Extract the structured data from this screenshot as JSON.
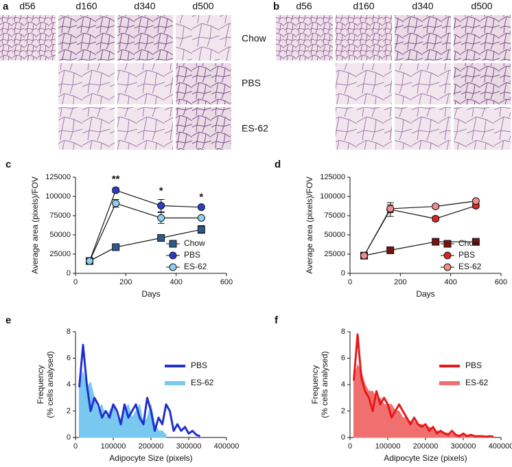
{
  "figure": {
    "panel_a": {
      "letter": "a",
      "columns": [
        "d56",
        "d160",
        "d340",
        "d500"
      ],
      "rows": [
        "Chow",
        "PBS",
        "ES-62"
      ]
    },
    "panel_b": {
      "letter": "b",
      "columns": [
        "d56",
        "d160",
        "d340",
        "d500"
      ]
    }
  },
  "chart_data": [
    {
      "type": "line",
      "panel": "c",
      "xlabel": "Days",
      "ylabel": "Average area (pixels)/FOV",
      "x": [
        56,
        160,
        340,
        500
      ],
      "series": [
        {
          "name": "Chow",
          "color": "#2b5c8c",
          "marker": "square",
          "values": [
            16000,
            34000,
            46000,
            57000
          ],
          "errors": [
            0,
            2000,
            2500,
            5000
          ]
        },
        {
          "name": "PBS",
          "color": "#2a3fc8",
          "marker": "circle",
          "values": [
            16000,
            108000,
            88000,
            86000
          ],
          "errors": [
            0,
            3000,
            8000,
            2000
          ]
        },
        {
          "name": "ES-62",
          "color": "#8fd0f2",
          "marker": "circle",
          "values": [
            16000,
            91000,
            72000,
            72000
          ],
          "errors": [
            0,
            5000,
            7000,
            2000
          ]
        }
      ],
      "annotations": [
        {
          "x": 160,
          "text": "**"
        },
        {
          "x": 340,
          "text": "*"
        },
        {
          "x": 500,
          "text": "*"
        }
      ],
      "xlim": [
        0,
        600
      ],
      "xticks": [
        0,
        200,
        400,
        600
      ],
      "ylim": [
        0,
        125000
      ],
      "yticks": [
        0,
        25000,
        50000,
        75000,
        100000,
        125000
      ],
      "legend": "lower right"
    },
    {
      "type": "line",
      "panel": "d",
      "xlabel": "Days",
      "ylabel": "Average area (pixels)/FOV",
      "x": [
        56,
        160,
        340,
        500
      ],
      "series": [
        {
          "name": "Chow",
          "color": "#7a1212",
          "marker": "square",
          "values": [
            23000,
            30000,
            41000,
            41000
          ],
          "errors": [
            0,
            2000,
            3000,
            2000
          ]
        },
        {
          "name": "PBS",
          "color": "#e02424",
          "marker": "circle",
          "values": [
            23000,
            83000,
            71000,
            88000
          ],
          "errors": [
            0,
            9000,
            3000,
            3000
          ]
        },
        {
          "name": "ES-62",
          "color": "#f28a8a",
          "marker": "circle",
          "values": [
            23000,
            84000,
            87000,
            94000
          ],
          "errors": [
            0,
            5000,
            2500,
            2000
          ]
        }
      ],
      "xlim": [
        0,
        600
      ],
      "xticks": [
        0,
        200,
        400,
        600
      ],
      "ylim": [
        0,
        125000
      ],
      "yticks": [
        0,
        25000,
        50000,
        75000,
        100000,
        125000
      ],
      "legend": "lower right"
    },
    {
      "type": "line",
      "panel": "e",
      "xlabel": "Adipocyte Size (pixels)",
      "ylabel": [
        "Frequency",
        "(% cells analysed)"
      ],
      "x": [
        10000,
        20000,
        30000,
        40000,
        50000,
        60000,
        70000,
        80000,
        90000,
        100000,
        110000,
        120000,
        130000,
        140000,
        150000,
        160000,
        170000,
        180000,
        190000,
        200000,
        210000,
        220000,
        230000,
        240000,
        250000,
        260000,
        270000,
        280000,
        290000,
        300000,
        310000,
        320000,
        330000
      ],
      "series": [
        {
          "name": "PBS",
          "color": "#1f2fd0",
          "style": "line",
          "values": [
            3.8,
            7.0,
            4.0,
            2.0,
            3.0,
            2.5,
            1.5,
            2.0,
            1.5,
            2.5,
            2.0,
            1.0,
            2.5,
            1.5,
            2.0,
            2.5,
            1.5,
            1.0,
            3.0,
            2.0,
            0.5,
            1.5,
            1.0,
            2.5,
            2.0,
            0.5,
            1.0,
            0.5,
            0.8,
            0.3,
            0.5,
            0.2,
            0.1
          ]
        },
        {
          "name": "ES-62",
          "color": "#78c8f0",
          "style": "area",
          "values": [
            4.0,
            5.0,
            3.8,
            4.2,
            3.0,
            2.0,
            2.5,
            1.5,
            2.0,
            2.5,
            1.5,
            1.0,
            2.0,
            2.5,
            1.5,
            2.0,
            2.5,
            1.0,
            1.5,
            2.5,
            1.0,
            0.5,
            0.5,
            0.2,
            null,
            null,
            null,
            null,
            null,
            null,
            null,
            null,
            null
          ]
        }
      ],
      "xlim": [
        0,
        400000
      ],
      "xticks": [
        0,
        100000,
        200000,
        300000,
        400000
      ],
      "ylim": [
        0,
        8
      ],
      "yticks": [
        0,
        2,
        4,
        6,
        8
      ],
      "legend": "upper right"
    },
    {
      "type": "line",
      "panel": "f",
      "xlabel": "Adipocyte Size (pixels)",
      "ylabel": [
        "Frequency",
        "(% cells analysed)"
      ],
      "x": [
        10000,
        20000,
        30000,
        40000,
        50000,
        60000,
        70000,
        80000,
        90000,
        100000,
        110000,
        120000,
        130000,
        140000,
        150000,
        160000,
        170000,
        180000,
        190000,
        200000,
        210000,
        220000,
        230000,
        240000,
        250000,
        260000,
        270000,
        280000,
        290000,
        300000,
        310000,
        320000,
        330000,
        340000,
        350000,
        360000,
        370000,
        380000
      ],
      "series": [
        {
          "name": "PBS",
          "color": "#e81818",
          "style": "line",
          "values": [
            4.3,
            7.8,
            4.5,
            3.5,
            3.0,
            2.0,
            3.5,
            2.5,
            3.0,
            2.5,
            1.5,
            2.0,
            2.5,
            2.0,
            1.5,
            1.0,
            1.5,
            1.0,
            0.8,
            1.0,
            0.5,
            0.8,
            0.3,
            0.5,
            0.3,
            0.2,
            0.5,
            0.2,
            0.1,
            0.3,
            0.1,
            0.2,
            0.1,
            0.1,
            0.1,
            0.05,
            0.1,
            0.05
          ]
        },
        {
          "name": "ES-62",
          "color": "#f07070",
          "style": "area",
          "values": [
            4.5,
            5.5,
            5.0,
            4.0,
            3.5,
            3.5,
            3.0,
            3.0,
            2.5,
            2.5,
            2.5,
            2.0,
            2.0,
            1.5,
            1.5,
            1.2,
            1.2,
            1.0,
            1.0,
            0.8,
            0.8,
            0.6,
            0.5,
            0.5,
            0.4,
            0.3,
            0.3,
            0.2,
            0.2,
            0.2,
            0.1,
            0.1,
            0.1,
            0.1,
            0.05,
            0.05,
            0.05,
            0.05
          ]
        }
      ],
      "xlim": [
        0,
        400000
      ],
      "xticks": [
        0,
        100000,
        200000,
        300000,
        400000
      ],
      "ylim": [
        0,
        8
      ],
      "yticks": [
        0,
        2,
        4,
        6,
        8
      ],
      "legend": "upper right"
    }
  ]
}
